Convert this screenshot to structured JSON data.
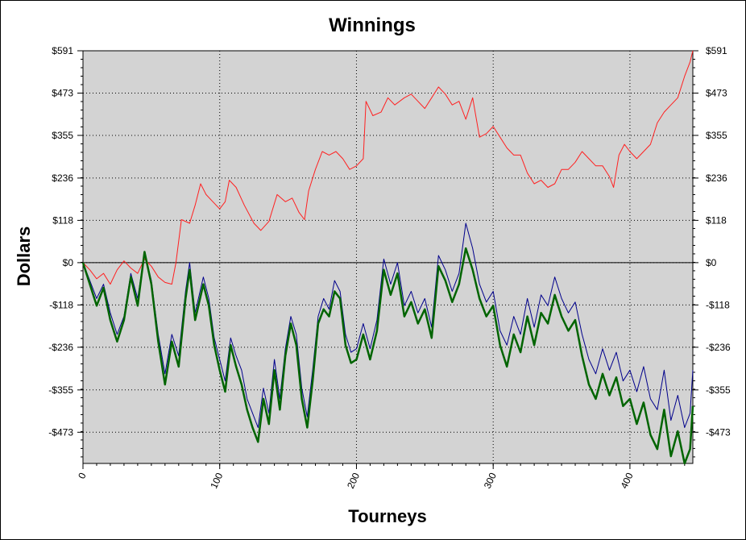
{
  "chart_data": {
    "type": "line",
    "title": "Winnings",
    "xlabel": "Tourneys",
    "ylabel": "Dollars",
    "xlim": [
      0,
      446
    ],
    "ylim": [
      -560,
      591
    ],
    "x_ticks": [
      0,
      100,
      200,
      300,
      400
    ],
    "x_tick_labels": [
      "0",
      "100",
      "200",
      "300",
      "400"
    ],
    "y_ticks": [
      591,
      473,
      355,
      236,
      118,
      0,
      -118,
      -236,
      -355,
      -473
    ],
    "y_tick_labels": [
      "$591",
      "$473",
      "$355",
      "$236",
      "$118",
      "$0",
      "-$118",
      "-$236",
      "-$355",
      "-$473"
    ],
    "grid": true,
    "background": "#d3d3d3",
    "series": [
      {
        "color": "#ff2020",
        "width": 1,
        "points": [
          [
            0,
            0
          ],
          [
            5,
            -20
          ],
          [
            10,
            -45
          ],
          [
            15,
            -30
          ],
          [
            20,
            -60
          ],
          [
            25,
            -20
          ],
          [
            30,
            5
          ],
          [
            35,
            -15
          ],
          [
            40,
            -30
          ],
          [
            45,
            10
          ],
          [
            50,
            -10
          ],
          [
            55,
            -40
          ],
          [
            60,
            -55
          ],
          [
            65,
            -60
          ],
          [
            68,
            0
          ],
          [
            72,
            120
          ],
          [
            78,
            110
          ],
          [
            82,
            160
          ],
          [
            86,
            220
          ],
          [
            90,
            190
          ],
          [
            95,
            170
          ],
          [
            100,
            150
          ],
          [
            104,
            170
          ],
          [
            107,
            230
          ],
          [
            112,
            210
          ],
          [
            118,
            160
          ],
          [
            125,
            110
          ],
          [
            130,
            90
          ],
          [
            136,
            115
          ],
          [
            142,
            190
          ],
          [
            148,
            170
          ],
          [
            153,
            180
          ],
          [
            158,
            140
          ],
          [
            162,
            120
          ],
          [
            165,
            200
          ],
          [
            170,
            260
          ],
          [
            175,
            310
          ],
          [
            180,
            300
          ],
          [
            185,
            310
          ],
          [
            190,
            290
          ],
          [
            195,
            260
          ],
          [
            200,
            270
          ],
          [
            205,
            290
          ],
          [
            207,
            450
          ],
          [
            212,
            410
          ],
          [
            218,
            420
          ],
          [
            223,
            460
          ],
          [
            228,
            440
          ],
          [
            235,
            460
          ],
          [
            240,
            470
          ],
          [
            245,
            450
          ],
          [
            250,
            430
          ],
          [
            255,
            460
          ],
          [
            260,
            490
          ],
          [
            265,
            470
          ],
          [
            270,
            440
          ],
          [
            275,
            450
          ],
          [
            280,
            400
          ],
          [
            285,
            460
          ],
          [
            290,
            350
          ],
          [
            295,
            360
          ],
          [
            300,
            380
          ],
          [
            305,
            350
          ],
          [
            310,
            320
          ],
          [
            315,
            300
          ],
          [
            320,
            300
          ],
          [
            325,
            250
          ],
          [
            330,
            220
          ],
          [
            335,
            230
          ],
          [
            340,
            210
          ],
          [
            345,
            220
          ],
          [
            350,
            260
          ],
          [
            355,
            260
          ],
          [
            360,
            280
          ],
          [
            365,
            310
          ],
          [
            370,
            290
          ],
          [
            375,
            270
          ],
          [
            380,
            270
          ],
          [
            385,
            240
          ],
          [
            388,
            210
          ],
          [
            392,
            300
          ],
          [
            396,
            330
          ],
          [
            400,
            310
          ],
          [
            405,
            290
          ],
          [
            410,
            310
          ],
          [
            415,
            330
          ],
          [
            420,
            390
          ],
          [
            425,
            420
          ],
          [
            430,
            440
          ],
          [
            435,
            460
          ],
          [
            440,
            520
          ],
          [
            444,
            560
          ],
          [
            446,
            591
          ]
        ]
      },
      {
        "color": "#00008b",
        "width": 1,
        "points": [
          [
            0,
            0
          ],
          [
            5,
            -50
          ],
          [
            10,
            -100
          ],
          [
            15,
            -60
          ],
          [
            20,
            -140
          ],
          [
            25,
            -200
          ],
          [
            30,
            -150
          ],
          [
            35,
            -30
          ],
          [
            40,
            -100
          ],
          [
            45,
            30
          ],
          [
            50,
            -50
          ],
          [
            55,
            -200
          ],
          [
            60,
            -310
          ],
          [
            65,
            -200
          ],
          [
            70,
            -260
          ],
          [
            75,
            -80
          ],
          [
            78,
            0
          ],
          [
            82,
            -140
          ],
          [
            88,
            -40
          ],
          [
            92,
            -100
          ],
          [
            96,
            -210
          ],
          [
            100,
            -270
          ],
          [
            104,
            -330
          ],
          [
            108,
            -210
          ],
          [
            112,
            -260
          ],
          [
            116,
            -300
          ],
          [
            120,
            -380
          ],
          [
            124,
            -420
          ],
          [
            128,
            -460
          ],
          [
            132,
            -350
          ],
          [
            136,
            -420
          ],
          [
            140,
            -270
          ],
          [
            144,
            -380
          ],
          [
            148,
            -240
          ],
          [
            152,
            -150
          ],
          [
            156,
            -200
          ],
          [
            160,
            -350
          ],
          [
            164,
            -430
          ],
          [
            168,
            -300
          ],
          [
            172,
            -150
          ],
          [
            176,
            -100
          ],
          [
            180,
            -130
          ],
          [
            184,
            -50
          ],
          [
            188,
            -80
          ],
          [
            192,
            -200
          ],
          [
            196,
            -250
          ],
          [
            200,
            -240
          ],
          [
            205,
            -170
          ],
          [
            210,
            -240
          ],
          [
            215,
            -160
          ],
          [
            220,
            10
          ],
          [
            225,
            -60
          ],
          [
            230,
            0
          ],
          [
            235,
            -120
          ],
          [
            240,
            -80
          ],
          [
            245,
            -140
          ],
          [
            250,
            -100
          ],
          [
            255,
            -180
          ],
          [
            260,
            20
          ],
          [
            265,
            -20
          ],
          [
            270,
            -80
          ],
          [
            275,
            -30
          ],
          [
            280,
            110
          ],
          [
            285,
            40
          ],
          [
            290,
            -60
          ],
          [
            295,
            -110
          ],
          [
            300,
            -80
          ],
          [
            305,
            -190
          ],
          [
            310,
            -230
          ],
          [
            315,
            -150
          ],
          [
            320,
            -200
          ],
          [
            325,
            -100
          ],
          [
            330,
            -180
          ],
          [
            335,
            -90
          ],
          [
            340,
            -120
          ],
          [
            345,
            -40
          ],
          [
            350,
            -100
          ],
          [
            355,
            -140
          ],
          [
            360,
            -110
          ],
          [
            365,
            -200
          ],
          [
            370,
            -270
          ],
          [
            375,
            -310
          ],
          [
            380,
            -240
          ],
          [
            385,
            -300
          ],
          [
            390,
            -250
          ],
          [
            395,
            -330
          ],
          [
            400,
            -300
          ],
          [
            405,
            -360
          ],
          [
            410,
            -290
          ],
          [
            415,
            -380
          ],
          [
            420,
            -410
          ],
          [
            425,
            -300
          ],
          [
            430,
            -440
          ],
          [
            435,
            -370
          ],
          [
            440,
            -460
          ],
          [
            444,
            -420
          ],
          [
            446,
            -300
          ]
        ]
      },
      {
        "color": "#006400",
        "width": 2.5,
        "points": [
          [
            0,
            0
          ],
          [
            5,
            -60
          ],
          [
            10,
            -120
          ],
          [
            15,
            -70
          ],
          [
            20,
            -160
          ],
          [
            25,
            -220
          ],
          [
            30,
            -160
          ],
          [
            35,
            -40
          ],
          [
            40,
            -120
          ],
          [
            45,
            30
          ],
          [
            50,
            -60
          ],
          [
            55,
            -220
          ],
          [
            60,
            -340
          ],
          [
            65,
            -220
          ],
          [
            70,
            -290
          ],
          [
            75,
            -100
          ],
          [
            78,
            -20
          ],
          [
            82,
            -160
          ],
          [
            88,
            -60
          ],
          [
            92,
            -120
          ],
          [
            96,
            -230
          ],
          [
            100,
            -300
          ],
          [
            104,
            -360
          ],
          [
            108,
            -230
          ],
          [
            112,
            -290
          ],
          [
            116,
            -340
          ],
          [
            120,
            -410
          ],
          [
            124,
            -460
          ],
          [
            128,
            -500
          ],
          [
            132,
            -380
          ],
          [
            136,
            -450
          ],
          [
            140,
            -300
          ],
          [
            144,
            -410
          ],
          [
            148,
            -260
          ],
          [
            152,
            -170
          ],
          [
            156,
            -230
          ],
          [
            160,
            -380
          ],
          [
            164,
            -460
          ],
          [
            168,
            -330
          ],
          [
            172,
            -170
          ],
          [
            176,
            -130
          ],
          [
            180,
            -150
          ],
          [
            184,
            -80
          ],
          [
            188,
            -100
          ],
          [
            192,
            -230
          ],
          [
            196,
            -280
          ],
          [
            200,
            -270
          ],
          [
            205,
            -200
          ],
          [
            210,
            -270
          ],
          [
            215,
            -190
          ],
          [
            220,
            -20
          ],
          [
            225,
            -90
          ],
          [
            230,
            -30
          ],
          [
            235,
            -150
          ],
          [
            240,
            -110
          ],
          [
            245,
            -170
          ],
          [
            250,
            -130
          ],
          [
            255,
            -210
          ],
          [
            260,
            -10
          ],
          [
            265,
            -50
          ],
          [
            270,
            -110
          ],
          [
            275,
            -60
          ],
          [
            280,
            40
          ],
          [
            285,
            -20
          ],
          [
            290,
            -100
          ],
          [
            295,
            -150
          ],
          [
            300,
            -120
          ],
          [
            305,
            -230
          ],
          [
            310,
            -290
          ],
          [
            315,
            -200
          ],
          [
            320,
            -250
          ],
          [
            325,
            -150
          ],
          [
            330,
            -230
          ],
          [
            335,
            -140
          ],
          [
            340,
            -170
          ],
          [
            345,
            -90
          ],
          [
            350,
            -150
          ],
          [
            355,
            -190
          ],
          [
            360,
            -160
          ],
          [
            365,
            -260
          ],
          [
            370,
            -340
          ],
          [
            375,
            -380
          ],
          [
            380,
            -310
          ],
          [
            385,
            -370
          ],
          [
            390,
            -320
          ],
          [
            395,
            -400
          ],
          [
            400,
            -380
          ],
          [
            405,
            -450
          ],
          [
            410,
            -390
          ],
          [
            415,
            -480
          ],
          [
            420,
            -520
          ],
          [
            425,
            -410
          ],
          [
            430,
            -540
          ],
          [
            435,
            -470
          ],
          [
            440,
            -560
          ],
          [
            444,
            -520
          ],
          [
            446,
            -400
          ]
        ]
      }
    ]
  }
}
